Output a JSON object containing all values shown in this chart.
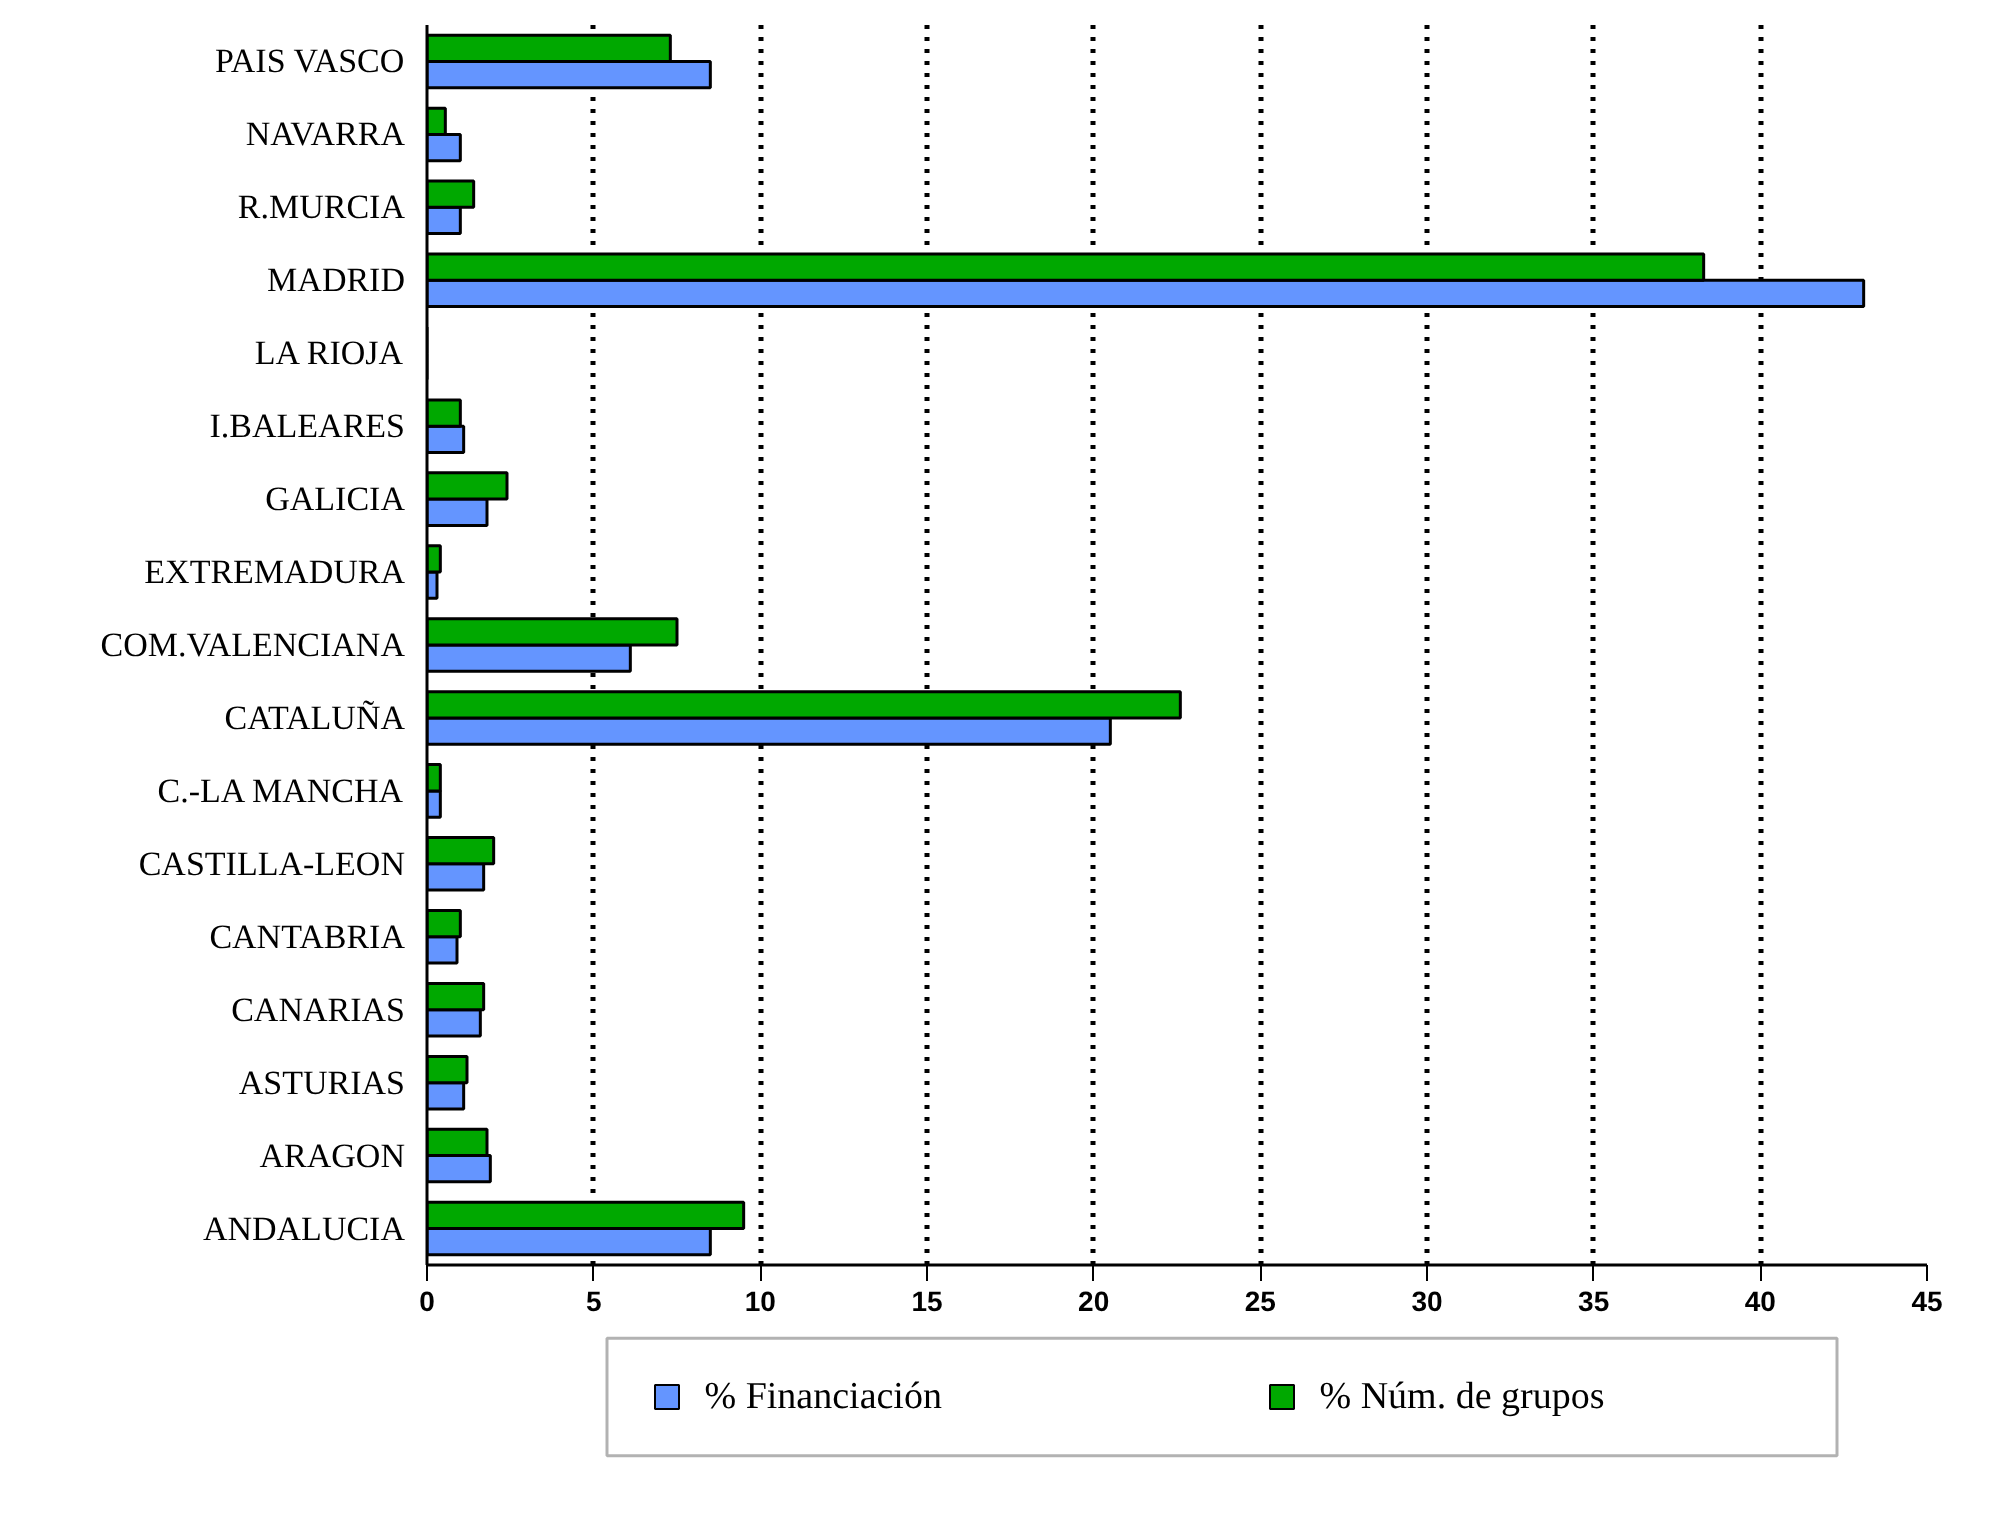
{
  "chart_data": {
    "type": "bar",
    "orientation": "horizontal",
    "categories": [
      "PAIS VASCO",
      "NAVARRA",
      "R.MURCIA",
      "MADRID",
      "LA RIOJA",
      "I.BALEARES",
      "GALICIA",
      "EXTREMADURA",
      "COM.VALENCIANA",
      "CATALUÑA",
      "C.-LA MANCHA",
      "CASTILLA-LEON",
      "CANTABRIA",
      "CANARIAS",
      "ASTURIAS",
      "ARAGON",
      "ANDALUCIA"
    ],
    "series": [
      {
        "name": "% Financiación",
        "color": "#6495ff",
        "values": [
          8.5,
          1.0,
          1.0,
          43.1,
          0,
          1.1,
          1.8,
          0.3,
          6.1,
          20.5,
          0.4,
          1.7,
          0.9,
          1.6,
          1.1,
          1.9,
          8.5
        ]
      },
      {
        "name": "% Núm. de grupos",
        "color": "#00a800",
        "values": [
          7.3,
          0.55,
          1.4,
          38.3,
          0,
          1.0,
          2.4,
          0.4,
          7.5,
          22.6,
          0.4,
          2.0,
          1.0,
          1.7,
          1.2,
          1.8,
          9.5
        ]
      }
    ],
    "xlim": [
      0,
      45
    ],
    "xticks": [
      0,
      5,
      10,
      15,
      20,
      25,
      30,
      35,
      40,
      45
    ],
    "grid": "x",
    "legend": "bottom"
  }
}
